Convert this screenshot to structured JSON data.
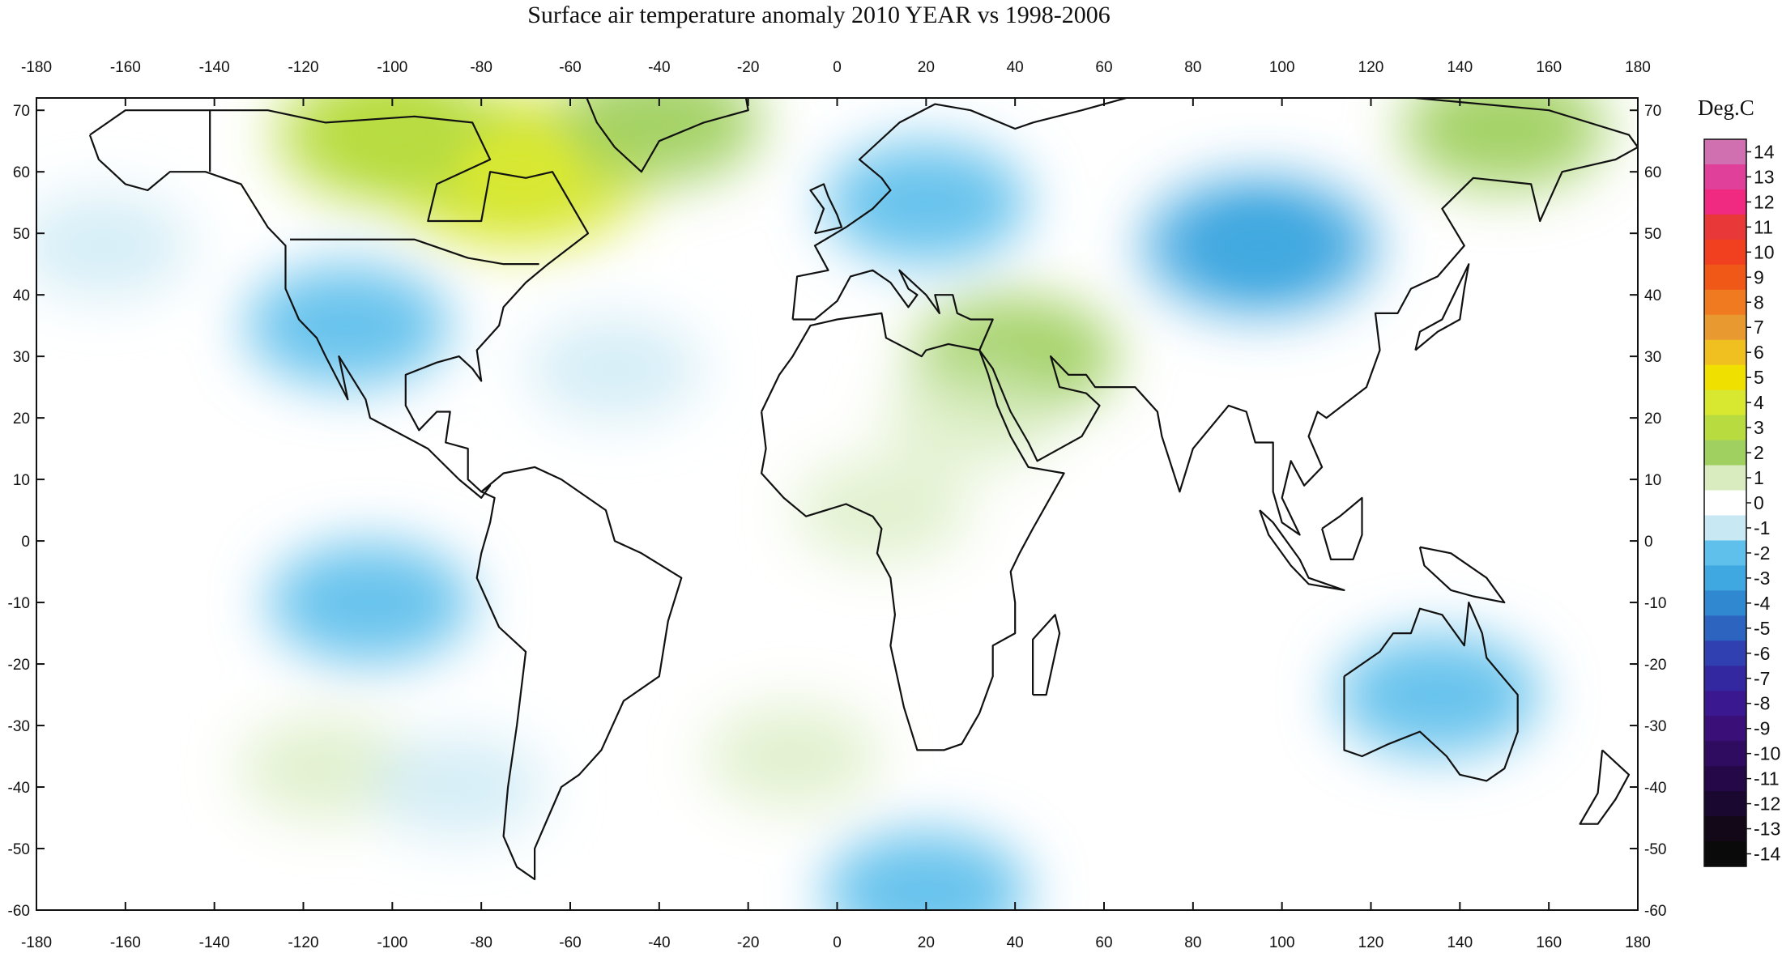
{
  "title": "Surface air temperature anomaly 2010 YEAR vs 1998-2006",
  "map": {
    "projection": "equirectangular",
    "lon_range": [
      -180,
      180
    ],
    "lat_range": [
      -60,
      72
    ],
    "lon_ticks": [
      -180,
      -160,
      -140,
      -120,
      -100,
      -80,
      -60,
      -40,
      -20,
      0,
      20,
      40,
      60,
      80,
      100,
      120,
      140,
      160,
      180
    ],
    "lat_ticks": [
      -60,
      -50,
      -40,
      -30,
      -20,
      -10,
      0,
      10,
      20,
      30,
      40,
      50,
      60,
      70
    ],
    "lon_tick_labels": [
      "-180",
      "-160",
      "-140",
      "-120",
      "-100",
      "-80",
      "-60",
      "-40",
      "-20",
      "0",
      "20",
      "40",
      "60",
      "80",
      "100",
      "120",
      "140",
      "160",
      "180"
    ],
    "lat_tick_labels": [
      "-60",
      "-50",
      "-40",
      "-30",
      "-20",
      "-10",
      "0",
      "10",
      "20",
      "30",
      "40",
      "50",
      "60",
      "70"
    ],
    "anomaly_regions": [
      {
        "region": "northeast-canada-greenland",
        "lon": -72,
        "lat": 60,
        "value": 4
      },
      {
        "region": "northern-canada",
        "lon": -100,
        "lat": 66,
        "value": 3
      },
      {
        "region": "greenland-east",
        "lon": -40,
        "lat": 68,
        "value": 2
      },
      {
        "region": "northern-russia",
        "lon": 150,
        "lat": 67,
        "value": 2
      },
      {
        "region": "middle-east",
        "lon": 40,
        "lat": 30,
        "value": 2
      },
      {
        "region": "north-africa",
        "lon": 30,
        "lat": 20,
        "value": 1
      },
      {
        "region": "central-africa",
        "lon": 10,
        "lat": 5,
        "value": 1
      },
      {
        "region": "south-pacific",
        "lon": -115,
        "lat": -37,
        "value": 1
      },
      {
        "region": "south-atlantic",
        "lon": -10,
        "lat": -35,
        "value": 1
      },
      {
        "region": "northern-europe",
        "lon": 20,
        "lat": 55,
        "value": -2
      },
      {
        "region": "siberia-mongolia",
        "lon": 95,
        "lat": 48,
        "value": -3
      },
      {
        "region": "north-pacific-east",
        "lon": -110,
        "lat": 35,
        "value": -2
      },
      {
        "region": "gulf-of-alaska",
        "lon": -165,
        "lat": 48,
        "value": -1
      },
      {
        "region": "north-atlantic",
        "lon": -50,
        "lat": 28,
        "value": -1
      },
      {
        "region": "eastern-equatorial-pacific",
        "lon": -105,
        "lat": -10,
        "value": -2
      },
      {
        "region": "southeast-pacific",
        "lon": -85,
        "lat": -40,
        "value": -1
      },
      {
        "region": "central-australia",
        "lon": 135,
        "lat": -25,
        "value": -2
      },
      {
        "region": "southern-ocean",
        "lon": 20,
        "lat": -57,
        "value": -2
      }
    ]
  },
  "legend": {
    "unit": "Deg.C",
    "labels": [
      "14",
      "13",
      "12",
      "11",
      "10",
      "9",
      "8",
      "7",
      "6",
      "5",
      "4",
      "3",
      "2",
      "1",
      "0",
      "-1",
      "-2",
      "-3",
      "-4",
      "-5",
      "-6",
      "-7",
      "-8",
      "-9",
      "-10",
      "-11",
      "-12",
      "-13",
      "-14"
    ],
    "colors": [
      "#d070b0",
      "#e0409a",
      "#f02a80",
      "#e83838",
      "#f04020",
      "#f05818",
      "#f07a20",
      "#e89a30",
      "#f0c020",
      "#f0e000",
      "#d8e830",
      "#b8dc40",
      "#a0d060",
      "#d8ecc0",
      "#ffffff",
      "#c8e8f4",
      "#60c0ec",
      "#40a8e0",
      "#3088d0",
      "#2c64c0",
      "#3040b0",
      "#3428a0",
      "#3a1890",
      "#3a1078",
      "#300c60",
      "#240848",
      "#1a0830",
      "#120818",
      "#0a0a0a"
    ]
  }
}
